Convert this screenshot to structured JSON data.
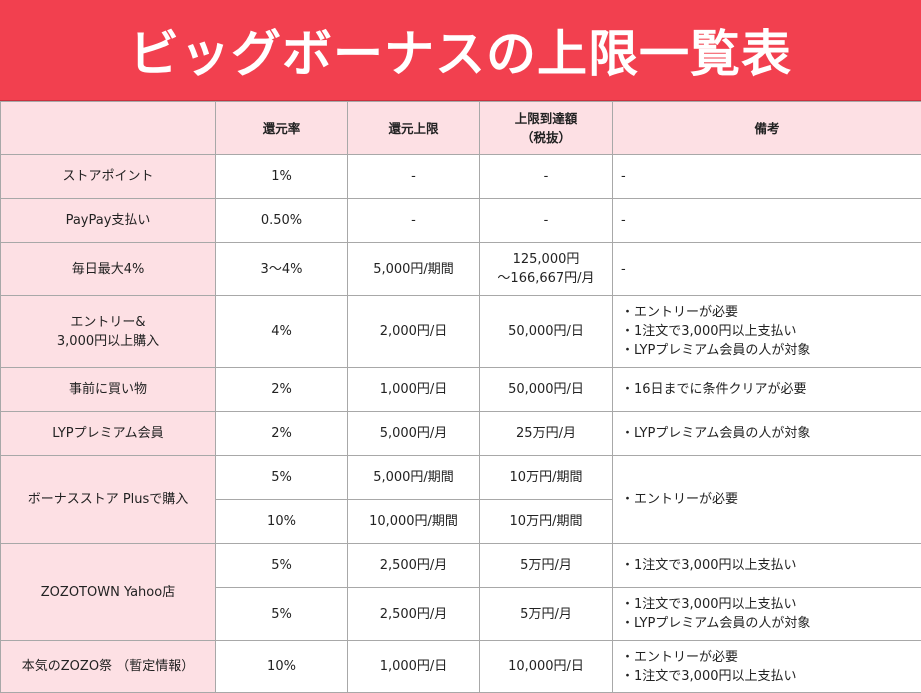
{
  "title": "ビッグボーナスの上限一覧表",
  "colors": {
    "banner": "#f2404f",
    "label_bg": "#fde0e4",
    "border": "#a8a8a8"
  },
  "headers": {
    "col0": "",
    "col1": "還元率",
    "col2": "還元上限",
    "col3_line1": "上限到達額",
    "col3_line2": "（税抜）",
    "col4": "備考"
  },
  "rows": [
    {
      "label": "ストアポイント",
      "rate": "1%",
      "cap": "-",
      "reach": "-",
      "note": "-"
    },
    {
      "label": "PayPay支払い",
      "rate": "0.50%",
      "cap": "-",
      "reach": "-",
      "note": "-"
    },
    {
      "label": "毎日最大4%",
      "rate": "3〜4%",
      "cap": "5,000円/期間",
      "reach_line1": "125,000円",
      "reach_line2": "〜166,667円/月",
      "note": "-"
    },
    {
      "label_line1": "エントリー&",
      "label_line2": "3,000円以上購入",
      "rate": "4%",
      "cap": "2,000円/日",
      "reach": "50,000円/日",
      "notes": [
        "・エントリーが必要",
        "・1注文で3,000円以上支払い",
        "・LYPプレミアム会員の人が対象"
      ]
    },
    {
      "label": "事前に買い物",
      "rate": "2%",
      "cap": "1,000円/日",
      "reach": "50,000円/日",
      "note": "・16日までに条件クリアが必要"
    },
    {
      "label": "LYPプレミアム会員",
      "rate": "2%",
      "cap": "5,000円/月",
      "reach": "25万円/月",
      "note": "・LYPプレミアム会員の人が対象"
    },
    {
      "label": "ボーナスストア Plusで購入",
      "rate": "5%",
      "cap": "5,000円/期間",
      "reach": "10万円/期間",
      "note": "・エントリーが必要"
    },
    {
      "rate": "10%",
      "cap": "10,000円/期間",
      "reach": "10万円/期間"
    },
    {
      "label": "ZOZOTOWN Yahoo店",
      "rate": "5%",
      "cap": "2,500円/月",
      "reach": "5万円/月",
      "note": "・1注文で3,000円以上支払い"
    },
    {
      "rate": "5%",
      "cap": "2,500円/月",
      "reach": "5万円/月",
      "notes": [
        "・1注文で3,000円以上支払い",
        "・LYPプレミアム会員の人が対象"
      ]
    },
    {
      "label": "本気のZOZO祭 （暫定情報）",
      "rate": "10%",
      "cap": "1,000円/日",
      "reach": "10,000円/日",
      "notes": [
        "・エントリーが必要",
        "・1注文で3,000円以上支払い"
      ]
    }
  ]
}
